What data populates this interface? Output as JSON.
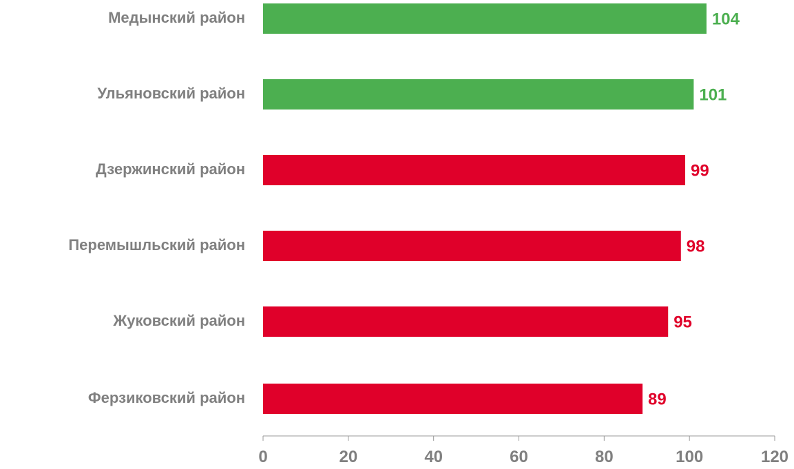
{
  "chart_data": {
    "type": "bar",
    "orientation": "horizontal",
    "title": "",
    "xlabel": "",
    "ylabel": "",
    "categories": [
      "Медынский район",
      "Ульяновский район",
      "Дзержинский район",
      "Перемышльский район",
      "Жуковский район",
      "Ферзиковский район"
    ],
    "values": [
      104,
      101,
      99,
      98,
      95,
      89
    ],
    "bar_colors": [
      "#4CAF50",
      "#4CAF50",
      "#E0002A",
      "#E0002A",
      "#E0002A",
      "#E0002A"
    ],
    "xlim": [
      0,
      120
    ],
    "x_ticks": [
      "0",
      "20",
      "40",
      "60",
      "80",
      "100",
      "120"
    ],
    "grid": false,
    "legend": "none",
    "data_labels": true
  },
  "colors": {
    "above_threshold": "#4CAF50",
    "below_threshold": "#E0002A",
    "axis_text": "#808080",
    "axis_line": "#9a9a9a"
  }
}
